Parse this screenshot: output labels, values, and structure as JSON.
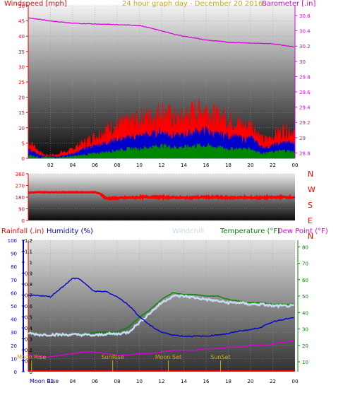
{
  "colors": {
    "wind_speed": "#ff0000",
    "wind_gust": "#ff0000",
    "wind_avg": "#0000cc",
    "wind_low": "#008800",
    "barometer": "#dd00dd",
    "direction": "#ff0000",
    "humidity": "#0000cc",
    "windchill": "#c8d8f0",
    "temperature": "#008800",
    "dewpoint": "#dd00dd",
    "rain_axis": "#ff0000",
    "moon_sun_marker": "#ccaa00"
  },
  "chart_data": [
    {
      "type": "area",
      "id": "wind_pressure",
      "title": "24 hour graph day - December 20 2016",
      "left_axis_label": "Windspeed [mph]",
      "right_axis_label": "Barometer [.in]",
      "x_ticks": [
        "02",
        "04",
        "06",
        "08",
        "10",
        "12",
        "14",
        "16",
        "18",
        "20",
        "22",
        "00"
      ],
      "y_left_ticks": [
        "0",
        "5",
        "10",
        "15",
        "20",
        "25",
        "30",
        "35",
        "40",
        "45",
        "50"
      ],
      "y_left_range": [
        0,
        50
      ],
      "y_right_ticks": [
        "28.8",
        "29",
        "29.2",
        "29.4",
        "29.6",
        "29.8",
        "30",
        "30.2",
        "30.4",
        "30.6"
      ],
      "y_right_range": [
        28.73,
        30.73
      ],
      "x_range": [
        0,
        24
      ],
      "series": [
        {
          "name": "Windspeed",
          "kind": "gust",
          "x": [
            0,
            0.5,
            1,
            1.5,
            2,
            2.5,
            3,
            3.5,
            4,
            4.5,
            5,
            5.5,
            6,
            6.5,
            7,
            7.5,
            8,
            8.5,
            9,
            9.5,
            10,
            10.5,
            11,
            11.5,
            12,
            12.5,
            13,
            13.5,
            14,
            14.5,
            15,
            15.5,
            16,
            16.5,
            17,
            17.5,
            18,
            18.5,
            19,
            19.5,
            20,
            20.5,
            21,
            21.5,
            22,
            22.5,
            23,
            23.5,
            24
          ],
          "values": [
            5,
            4,
            2,
            1,
            1,
            1,
            2,
            2,
            3,
            4,
            5,
            6,
            7,
            8,
            9,
            10,
            10,
            11,
            11,
            12,
            12,
            13,
            13,
            14,
            15,
            14,
            13,
            12,
            13,
            14,
            15,
            15,
            16,
            14,
            13,
            13,
            12,
            12,
            11,
            10,
            11,
            9,
            6,
            6,
            7,
            8,
            9,
            9,
            8
          ]
        },
        {
          "name": "Average",
          "kind": "avg",
          "x": [
            0,
            0.5,
            1,
            1.5,
            2,
            2.5,
            3,
            3.5,
            4,
            4.5,
            5,
            5.5,
            6,
            6.5,
            7,
            7.5,
            8,
            8.5,
            9,
            9.5,
            10,
            10.5,
            11,
            11.5,
            12,
            12.5,
            13,
            13.5,
            14,
            14.5,
            15,
            15.5,
            16,
            16.5,
            17,
            17.5,
            18,
            18.5,
            19,
            19.5,
            20,
            20.5,
            21,
            21.5,
            22,
            22.5,
            23,
            23.5,
            24
          ],
          "values": [
            3,
            2,
            1,
            0.5,
            0.5,
            0.5,
            1,
            1,
            1.5,
            2,
            3,
            3.5,
            4,
            4.5,
            5,
            5.5,
            6,
            6,
            6.5,
            7,
            7,
            7.5,
            7.5,
            8,
            8.5,
            8,
            7.5,
            7,
            7.5,
            8,
            8.5,
            8.5,
            9,
            8,
            7.5,
            7.5,
            7,
            7,
            6.5,
            6,
            6.5,
            5.5,
            3.5,
            3.5,
            4,
            4.5,
            5,
            5,
            4.5
          ]
        },
        {
          "name": "Low",
          "kind": "low",
          "x": [
            0,
            1,
            2,
            3,
            4,
            5,
            6,
            7,
            8,
            9,
            10,
            11,
            12,
            13,
            14,
            15,
            16,
            17,
            18,
            19,
            20,
            21,
            22,
            23,
            24
          ],
          "values": [
            1,
            0.3,
            0.2,
            0.3,
            0.5,
            1,
            1.5,
            2,
            2.5,
            3,
            3,
            3.5,
            4,
            3.5,
            3.5,
            4,
            4,
            3.5,
            3,
            3,
            3,
            1.5,
            2,
            2.5,
            2
          ]
        },
        {
          "name": "Barometer",
          "kind": "baro",
          "x": [
            0,
            2,
            4,
            6,
            8,
            10,
            12,
            13,
            14,
            16,
            18,
            20,
            22,
            24
          ],
          "values": [
            30.57,
            30.53,
            30.5,
            30.49,
            30.48,
            30.47,
            30.4,
            30.36,
            30.33,
            30.28,
            30.25,
            30.24,
            30.23,
            30.19
          ]
        }
      ]
    },
    {
      "type": "line",
      "id": "wind_direction",
      "y_ticks": [
        "0",
        "90",
        "180",
        "270",
        "360"
      ],
      "y_range": [
        0,
        360
      ],
      "x_range": [
        0,
        24
      ],
      "compass_labels": [
        "N",
        "W",
        "S",
        "E",
        "N"
      ],
      "series": [
        {
          "name": "Wind direction",
          "x": [
            0,
            1,
            2,
            3,
            4,
            5,
            6,
            6.5,
            7,
            8,
            9,
            10,
            11,
            12,
            13,
            14,
            15,
            16,
            17,
            18,
            19,
            20,
            21,
            22,
            23,
            24
          ],
          "values": [
            215,
            218,
            218,
            218,
            218,
            218,
            218,
            205,
            170,
            172,
            175,
            180,
            182,
            180,
            178,
            175,
            178,
            180,
            178,
            176,
            178,
            176,
            175,
            178,
            180,
            178
          ]
        }
      ]
    },
    {
      "type": "line",
      "id": "temp_humidity",
      "labels": {
        "rainfall": "Rainfall (.in)",
        "humidity": "Humidity (%)",
        "windchill": "Windchill",
        "temperature": "Temperature (°F)",
        "dewpoint": "Dew Point (°F)"
      },
      "x_ticks": [
        "02",
        "04",
        "06",
        "08",
        "10",
        "12",
        "14",
        "16",
        "18",
        "20",
        "22",
        "00"
      ],
      "x_range": [
        0,
        24
      ],
      "rain_ticks": [
        "0",
        "0.1",
        "0.2",
        "0.3",
        "0.4",
        "0.5",
        "0.6",
        "0.7",
        "0.8",
        "0.9",
        "1",
        "1.1",
        "1.2"
      ],
      "humidity_ticks": [
        "0",
        "10",
        "20",
        "30",
        "40",
        "50",
        "60",
        "70",
        "80",
        "90",
        "100"
      ],
      "temp_ticks": [
        "10",
        "20",
        "30",
        "40",
        "50",
        "60",
        "70",
        "80"
      ],
      "humidity_range": [
        0,
        100
      ],
      "temp_range": [
        4,
        84
      ],
      "series": [
        {
          "name": "Humidity",
          "axis": "humidity",
          "x": [
            0,
            1,
            2,
            3,
            4,
            4.5,
            5,
            5.5,
            6,
            7,
            8,
            9,
            10,
            11,
            12,
            13,
            14,
            15,
            16,
            17,
            18,
            19,
            20,
            21,
            22,
            23,
            24
          ],
          "values": [
            58,
            58,
            57,
            64,
            71,
            71,
            68,
            64,
            61,
            61,
            57,
            51,
            42,
            35,
            30,
            28,
            27,
            27,
            27,
            28,
            29,
            31,
            32,
            34,
            38,
            40,
            41
          ]
        },
        {
          "name": "Windchill",
          "axis": "temp",
          "x": [
            0,
            1,
            2,
            3,
            4,
            5,
            6,
            7,
            8,
            9,
            10,
            11,
            12,
            13,
            14,
            15,
            16,
            17,
            18,
            19,
            20,
            21,
            22,
            23,
            24
          ],
          "values": [
            27.5,
            26.5,
            26.5,
            26.5,
            26.5,
            26.5,
            26,
            27,
            27,
            28,
            34,
            40,
            46,
            50,
            50,
            49,
            48,
            47,
            46,
            46,
            45,
            45,
            44,
            44,
            44
          ]
        },
        {
          "name": "Temperature",
          "axis": "temp",
          "x": [
            0,
            1,
            2,
            3,
            4,
            5,
            6,
            7,
            8,
            9,
            10,
            11,
            12,
            13,
            14,
            15,
            16,
            17,
            18,
            19,
            20,
            21,
            22,
            23,
            24
          ],
          "values": [
            28,
            27,
            26,
            26,
            27,
            27,
            28,
            28,
            28,
            31,
            37,
            42,
            48,
            52,
            51,
            51,
            50,
            50,
            48,
            47,
            46,
            46,
            45,
            45,
            45
          ]
        },
        {
          "name": "Dew Point",
          "axis": "temp",
          "x": [
            0,
            1,
            2,
            3,
            4,
            5,
            6,
            7,
            8,
            9,
            10,
            11,
            12,
            13,
            14,
            15,
            16,
            17,
            18,
            19,
            20,
            21,
            22,
            23,
            24
          ],
          "values": [
            14,
            13,
            13,
            14,
            15,
            16,
            16,
            15,
            14,
            14,
            15,
            15,
            16,
            17,
            17,
            17,
            18,
            18,
            19,
            19,
            20,
            20,
            21,
            22,
            23
          ]
        }
      ],
      "events": [
        {
          "label": "Moon Rise",
          "x": 0.3,
          "row": "top"
        },
        {
          "label": "SunRise",
          "x": 7.6,
          "row": "top"
        },
        {
          "label": "Moon Set",
          "x": 12.6,
          "row": "top"
        },
        {
          "label": "SunSet",
          "x": 17.3,
          "row": "top"
        },
        {
          "label": "Moon Rise",
          "x": 0.3,
          "row": "bottom"
        }
      ]
    }
  ]
}
